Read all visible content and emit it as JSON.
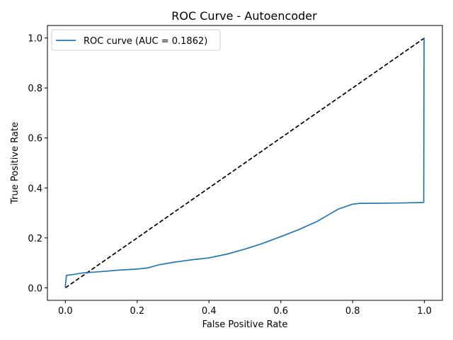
{
  "chart_data": {
    "type": "line",
    "title": "ROC Curve - Autoencoder",
    "xlabel": "False Positive Rate",
    "ylabel": "True Positive Rate",
    "xlim": [
      -0.05,
      1.05
    ],
    "ylim": [
      -0.05,
      1.05
    ],
    "xticks": [
      "0.0",
      "0.2",
      "0.4",
      "0.6",
      "0.8",
      "1.0"
    ],
    "yticks": [
      "0.0",
      "0.2",
      "0.4",
      "0.6",
      "0.8",
      "1.0"
    ],
    "grid": false,
    "legend_position": "top-left",
    "series": [
      {
        "name": "ROC curve (AUC = 0.1862)",
        "color": "#1f77b4",
        "style": "solid",
        "x": [
          0.0,
          0.0,
          0.003,
          0.02,
          0.05,
          0.1,
          0.15,
          0.2,
          0.23,
          0.26,
          0.3,
          0.35,
          0.4,
          0.45,
          0.5,
          0.55,
          0.6,
          0.65,
          0.7,
          0.73,
          0.76,
          0.8,
          0.82,
          0.9,
          0.95,
          0.998,
          0.999,
          0.999
        ],
        "y": [
          0.0,
          0.01,
          0.05,
          0.053,
          0.06,
          0.065,
          0.071,
          0.075,
          0.08,
          0.092,
          0.102,
          0.112,
          0.12,
          0.135,
          0.155,
          0.178,
          0.205,
          0.233,
          0.265,
          0.29,
          0.315,
          0.335,
          0.338,
          0.339,
          0.34,
          0.342,
          1.0,
          1.0
        ]
      },
      {
        "name": "",
        "color": "#000000",
        "style": "dashed",
        "x": [
          0.0,
          1.0
        ],
        "y": [
          0.0,
          1.0
        ]
      }
    ]
  }
}
